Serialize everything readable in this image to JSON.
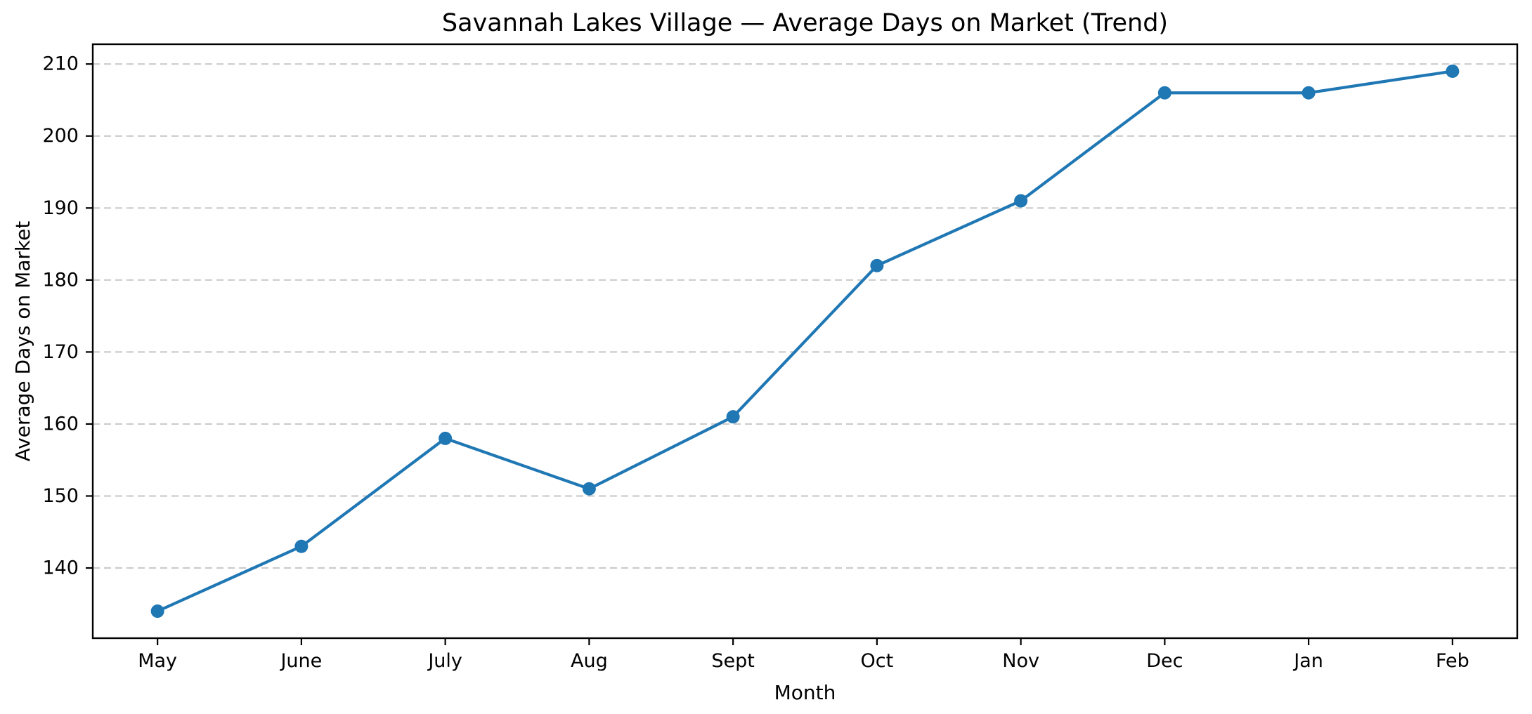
{
  "chart_data": {
    "type": "line",
    "title": "Savannah Lakes Village — Average Days on Market (Trend)",
    "xlabel": "Month",
    "ylabel": "Average Days on Market",
    "categories": [
      "May",
      "June",
      "July",
      "Aug",
      "Sept",
      "Oct",
      "Nov",
      "Dec",
      "Jan",
      "Feb"
    ],
    "series": [
      {
        "name": "Average Days on Market",
        "values": [
          134,
          143,
          158,
          151,
          161,
          182,
          191,
          206,
          206,
          209
        ]
      }
    ],
    "y_ticks": [
      140,
      150,
      160,
      170,
      180,
      190,
      200,
      210
    ],
    "ylim": [
      130.25,
      212.75
    ],
    "grid": "horizontal-dashed",
    "legend_position": "none",
    "colors": {
      "line": "#1f77b4",
      "marker": "#1f77b4",
      "grid": "#cccccc",
      "spine": "#000000",
      "background": "#ffffff",
      "text": "#000000"
    }
  }
}
